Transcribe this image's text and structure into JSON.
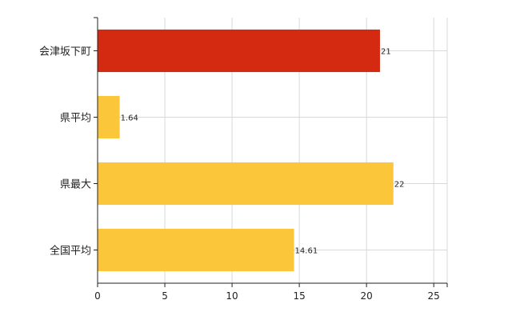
{
  "chart_data": {
    "type": "bar",
    "orientation": "horizontal",
    "title": "",
    "xlabel": "",
    "ylabel": "",
    "xlim": [
      0,
      26
    ],
    "x_ticks": [
      0,
      5,
      10,
      15,
      20,
      25
    ],
    "grid": true,
    "legend": "none",
    "categories": [
      "会津坂下町",
      "県平均",
      "県最大",
      "全国平均"
    ],
    "values": [
      21,
      1.64,
      22,
      14.61
    ],
    "value_labels": [
      "21",
      "1.64",
      "22",
      "14.61"
    ],
    "colors": [
      "#d42a12",
      "#fcc63a",
      "#fcc63a",
      "#fcc63a"
    ]
  }
}
